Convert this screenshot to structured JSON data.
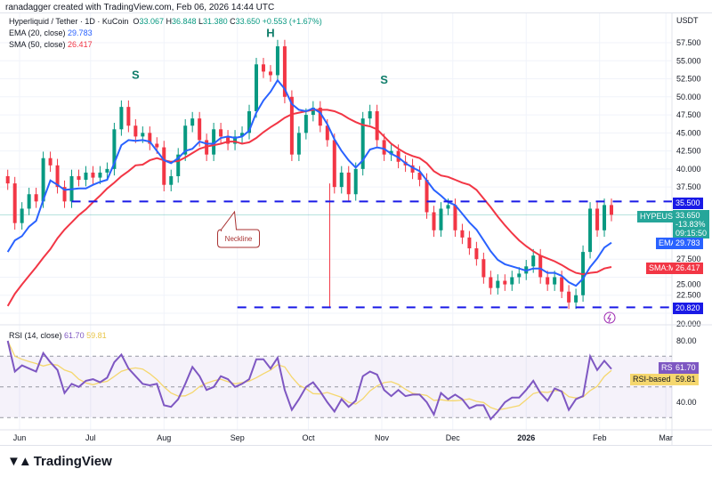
{
  "header": {
    "credit": "ranadagger created with TradingView.com, Feb 06, 2026 14:44 UTC",
    "currency": "USDT"
  },
  "legend": {
    "symbol": "Hyperliquid / Tether · 1D · KuCoin",
    "o_label": "O",
    "o": "33.067",
    "h_label": "H",
    "h": "36.848",
    "l_label": "L",
    "l": "31.380",
    "c_label": "C",
    "c": "33.650",
    "change": "+0.553 (+1.67%)",
    "ema_label": "EMA (20, close)",
    "ema_value": "29.783",
    "sma_label": "SMA (50, close)",
    "sma_value": "26.417"
  },
  "rsi_legend": {
    "label": "RSI (14, close)",
    "rsi_value": "61.70",
    "ma_value": "59.81"
  },
  "tags": {
    "neckline_price": "35.500",
    "symbol": "HYPEUSDT",
    "price": "33.650",
    "pct": "-13.83%",
    "countdown": "09:15:50",
    "ema_name": "EMA",
    "ema": "29.783",
    "sma_name": "SMA:MA",
    "sma": "26.417",
    "support_price": "20.820",
    "rsi_name": "RSI",
    "rsi": "61.70",
    "rsi_ma_name": "RSI-based MA",
    "rsi_ma": "59.81"
  },
  "annotations": {
    "left_shoulder": "S",
    "head": "H",
    "right_shoulder": "S",
    "neckline_callout": "Neckline"
  },
  "footer": {
    "brand": "TradingView"
  },
  "colors": {
    "up": "#089981",
    "down": "#f23645",
    "ema": "#2962ff",
    "sma": "#f23645",
    "rsi": "#7e57c2",
    "rsi_ma": "#f5d76e",
    "level_line": "#1a1ae6",
    "pattern_text": "#0f7d6a"
  },
  "chart_data": {
    "type": "candlestick",
    "price_axis": {
      "ticks": [
        57.5,
        55,
        52.5,
        50,
        47.5,
        45,
        42.5,
        40,
        37.5,
        27.5,
        25,
        22.5,
        20
      ],
      "range": [
        20,
        57.5
      ],
      "unit": "USDT"
    },
    "time_axis": {
      "ticks": [
        {
          "label": "Jun",
          "date": "2025-06-01"
        },
        {
          "label": "Jul",
          "date": "2025-07-01"
        },
        {
          "label": "Aug",
          "date": "2025-08-01"
        },
        {
          "label": "Sep",
          "date": "2025-09-01"
        },
        {
          "label": "Oct",
          "date": "2025-10-01"
        },
        {
          "label": "Nov",
          "date": "2025-11-01"
        },
        {
          "label": "Dec",
          "date": "2025-12-01"
        },
        {
          "label": "2026",
          "date": "2026-01-01"
        },
        {
          "label": "Feb",
          "date": "2026-02-01"
        },
        {
          "label": "Mar",
          "date": "2026-03-01"
        }
      ]
    },
    "dates": [
      "2025-05-27",
      "2025-05-30",
      "2025-06-02",
      "2025-06-05",
      "2025-06-08",
      "2025-06-11",
      "2025-06-14",
      "2025-06-17",
      "2025-06-20",
      "2025-06-23",
      "2025-06-26",
      "2025-06-29",
      "2025-07-02",
      "2025-07-05",
      "2025-07-08",
      "2025-07-11",
      "2025-07-14",
      "2025-07-17",
      "2025-07-20",
      "2025-07-23",
      "2025-07-26",
      "2025-07-29",
      "2025-08-01",
      "2025-08-04",
      "2025-08-07",
      "2025-08-10",
      "2025-08-13",
      "2025-08-16",
      "2025-08-19",
      "2025-08-22",
      "2025-08-25",
      "2025-08-28",
      "2025-08-31",
      "2025-09-03",
      "2025-09-06",
      "2025-09-09",
      "2025-09-12",
      "2025-09-15",
      "2025-09-18",
      "2025-09-21",
      "2025-09-24",
      "2025-09-27",
      "2025-09-30",
      "2025-10-03",
      "2025-10-06",
      "2025-10-09",
      "2025-10-12",
      "2025-10-15",
      "2025-10-18",
      "2025-10-21",
      "2025-10-24",
      "2025-10-27",
      "2025-10-30",
      "2025-11-02",
      "2025-11-05",
      "2025-11-08",
      "2025-11-11",
      "2025-11-14",
      "2025-11-17",
      "2025-11-20",
      "2025-11-23",
      "2025-11-26",
      "2025-11-29",
      "2025-12-02",
      "2025-12-05",
      "2025-12-08",
      "2025-12-11",
      "2025-12-14",
      "2025-12-17",
      "2025-12-20",
      "2025-12-23",
      "2025-12-26",
      "2025-12-29",
      "2026-01-01",
      "2026-01-04",
      "2026-01-07",
      "2026-01-10",
      "2026-01-13",
      "2026-01-16",
      "2026-01-19",
      "2026-01-22",
      "2026-01-25",
      "2026-01-28",
      "2026-01-31",
      "2026-02-03",
      "2026-02-06"
    ],
    "close": [
      38,
      32.5,
      34.5,
      36.5,
      35.5,
      41.5,
      40.5,
      37.5,
      35.5,
      39,
      38.5,
      39.5,
      38.8,
      39.5,
      40,
      45.5,
      48.6,
      46,
      44.5,
      45,
      43.5,
      43,
      37.8,
      39,
      42,
      46,
      47,
      44,
      42,
      45.5,
      44.5,
      43.5,
      44.5,
      45,
      48,
      54.5,
      53.5,
      53,
      57,
      50,
      42,
      45,
      47.5,
      48.5,
      46,
      44,
      37.5,
      39.5,
      36.5,
      40,
      47,
      48,
      44,
      42,
      42.5,
      41,
      40.5,
      39.5,
      38.5,
      34,
      31.5,
      34.5,
      35,
      31.5,
      30.5,
      29,
      27.5,
      25,
      23.5,
      24.5,
      24,
      25,
      25.5,
      26.5,
      28,
      25,
      24,
      25,
      23,
      21.5,
      22.5,
      28.5,
      34.5,
      31.5,
      35,
      33.65
    ],
    "ema20": [
      28.5,
      30.1,
      30.7,
      32,
      32.8,
      35.7,
      38.4,
      37.8,
      37.1,
      37.2,
      37.3,
      37.3,
      37.8,
      38.2,
      38.5,
      40.8,
      43.3,
      44,
      43.9,
      44,
      43.8,
      42.5,
      41.2,
      40.8,
      41.5,
      42.5,
      42.8,
      43.8,
      43.5,
      43.5,
      44.3,
      44.5,
      44.3,
      44.5,
      45.3,
      47.8,
      49.5,
      50.7,
      52.3,
      51.1,
      49,
      48.2,
      48,
      48.4,
      47.8,
      46.2,
      44.1,
      42.5,
      41.2,
      40.2,
      41.2,
      42.7,
      43,
      42.8,
      42.1,
      41.6,
      40.8,
      40.2,
      39.7,
      38.4,
      37.1,
      36.3,
      35.4,
      35,
      33.8,
      32.6,
      31.6,
      30.1,
      28.6,
      27.4,
      26.8,
      26.5,
      26.2,
      25.9,
      26.2,
      26.2,
      25.6,
      25.6,
      25.2,
      24.3,
      23.8,
      24.8,
      26.4,
      27.6,
      29.1,
      29.783
    ],
    "sma50": [
      21,
      22.7,
      24,
      25.2,
      26.4,
      27.7,
      28.9,
      30.4,
      31.6,
      32.6,
      33.6,
      34.4,
      35.4,
      36.3,
      37.3,
      38.1,
      39,
      39.7,
      40.5,
      40.6,
      41.2,
      41.5,
      41.2,
      41,
      41.1,
      41.6,
      42.2,
      42.8,
      43.1,
      43.3,
      43.5,
      43.8,
      43.8,
      43.5,
      43.7,
      44.3,
      45.1,
      45.8,
      46.4,
      47.1,
      47.6,
      47.8,
      48,
      48.2,
      48.2,
      48.2,
      48,
      47.6,
      47,
      46.5,
      46.1,
      45.9,
      45.5,
      44.5,
      43.5,
      42.8,
      42.2,
      41.8,
      41.5,
      40.8,
      39.7,
      39.1,
      38.9,
      38.5,
      38.1,
      37.8,
      37.1,
      35.9,
      34.7,
      33.4,
      32.2,
      31.1,
      30.1,
      29.3,
      28.6,
      28,
      27.6,
      27.2,
      26.7,
      26.1,
      25.6,
      25.4,
      25.6,
      25.7,
      26.2,
      26.417
    ],
    "rsi": [
      80,
      60,
      64,
      62,
      60,
      72,
      66,
      61,
      46,
      52,
      50,
      54,
      55,
      53,
      56,
      66,
      71,
      62,
      57,
      52,
      51,
      52,
      38,
      37,
      42,
      52,
      63,
      57,
      48,
      50,
      57,
      55,
      50,
      52,
      55,
      68,
      68,
      62,
      69,
      48,
      35,
      42,
      50,
      53,
      47,
      40,
      34,
      42,
      37,
      41,
      57,
      60,
      58,
      48,
      44,
      48,
      44,
      45,
      45,
      40,
      32,
      46,
      42,
      45,
      42,
      36,
      38,
      38,
      29,
      34,
      40,
      43,
      43,
      48,
      54,
      46,
      41,
      49,
      47,
      35,
      42,
      44,
      70,
      61,
      67,
      61.7
    ],
    "rsi_axis": {
      "ticks": [
        80,
        40
      ],
      "bands": [
        70,
        50,
        30
      ],
      "range": [
        20,
        90
      ]
    },
    "levels": [
      {
        "value": 35.5,
        "from": "2025-06-23",
        "label": "Neckline"
      },
      {
        "value": 20.82,
        "from": "2025-09-01"
      }
    ],
    "wick_low": {
      "date": "2025-10-10",
      "value": 20.82
    },
    "pattern": [
      {
        "label": "S",
        "date": "2025-07-20",
        "value": 52.5
      },
      {
        "label": "H",
        "date": "2025-09-15",
        "value": 61.5
      },
      {
        "label": "S",
        "date": "2025-11-02",
        "value": 51.8
      }
    ]
  }
}
